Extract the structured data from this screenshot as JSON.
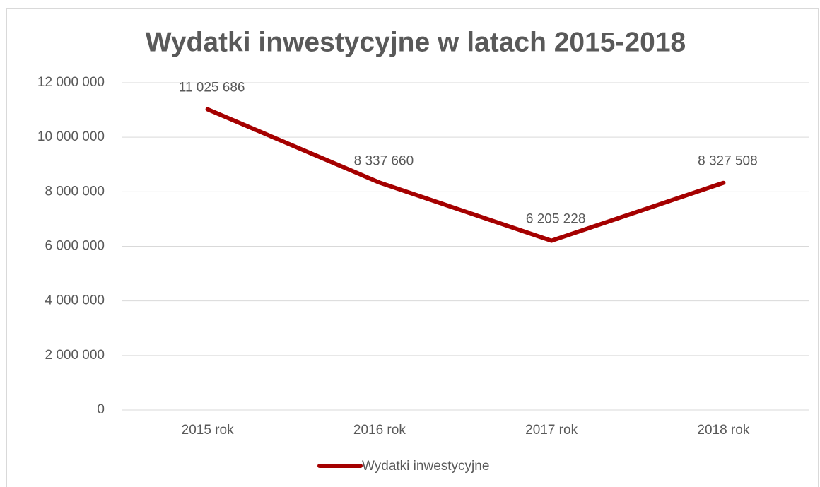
{
  "chart_data": {
    "type": "line",
    "title": "Wydatki inwestycyjne w latach 2015-2018",
    "categories": [
      "2015 rok",
      "2016 rok",
      "2017 rok",
      "2018 rok"
    ],
    "series": [
      {
        "name": "Wydatki inwestycyjne",
        "color": "#a50000",
        "values": [
          11025686,
          8337660,
          6205228,
          8327508
        ],
        "value_labels": [
          "11 025 686",
          "8 337 660",
          "6 205 228",
          "8 327 508"
        ]
      }
    ],
    "ylim": [
      0,
      12000000
    ],
    "yticks": [
      0,
      {
        "value": 2000000,
        "label": "2 000 000"
      },
      {
        "value": 4000000,
        "label": "4 000 000"
      },
      {
        "value": 6000000,
        "label": "6 000 000"
      },
      {
        "value": 8000000,
        "label": "8 000 000"
      },
      {
        "value": 10000000,
        "label": "10 000 000"
      },
      {
        "value": 12000000,
        "label": "12 000 000"
      }
    ],
    "grid": true,
    "legend": "bottom"
  }
}
